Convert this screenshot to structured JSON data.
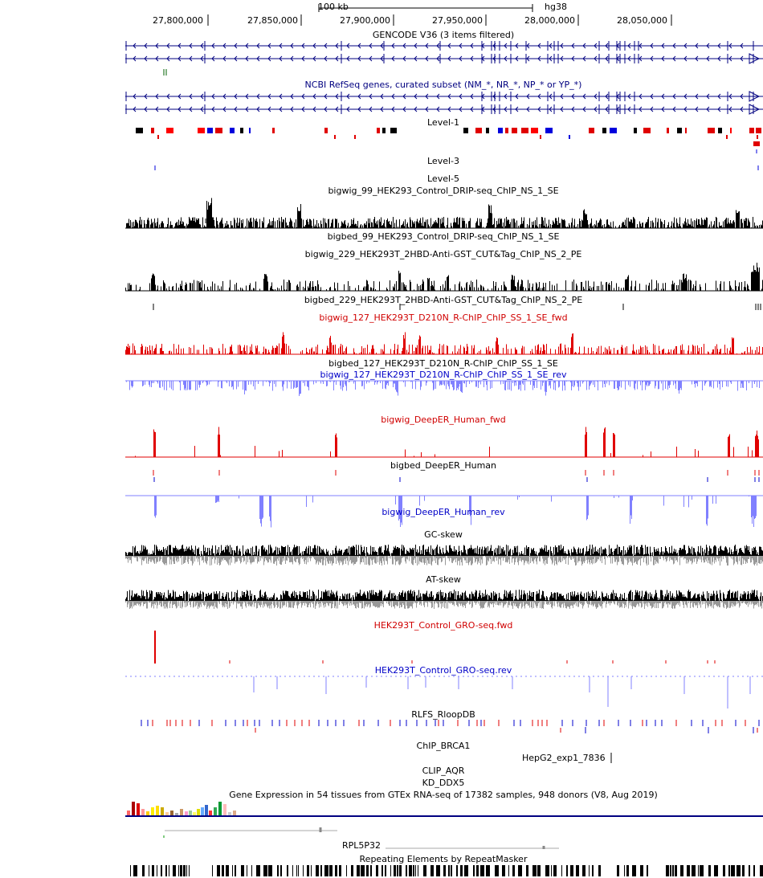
{
  "ruler": {
    "scale_label": "100 kb",
    "assembly": "hg38",
    "ticks": [
      "27,800,000",
      "27,850,000",
      "27,900,000",
      "27,950,000",
      "28,000,000",
      "28,050,000"
    ]
  },
  "tracks": {
    "gencode": "GENCODE V36 (3 items filtered)",
    "refseq": "NCBI RefSeq genes, curated subset (NM_*, NR_*, NP_* or YP_*)",
    "level1": "Level-1",
    "level3": "Level-3",
    "level5": "Level-5",
    "bigwig_99": "bigwig_99_HEK293_Control_DRIP-seq_ChIP_NS_1_SE",
    "bigbed_99": "bigbed_99_HEK293_Control_DRIP-seq_ChIP_NS_1_SE",
    "bigwig_229": "bigwig_229_HEK293T_2HBD-Anti-GST_CUT&Tag_ChIP_NS_2_PE",
    "bigbed_229": "bigbed_229_HEK293T_2HBD-Anti-GST_CUT&Tag_ChIP_NS_2_PE",
    "bigwig_127_fwd": "bigwig_127_HEK293T_D210N_R-ChIP_ChIP_SS_1_SE_fwd",
    "bigbed_127": "bigbed_127_HEK293T_D210N_R-ChIP_ChIP_SS_1_SE",
    "bigwig_127_rev": "bigwig_127_HEK293T_D210N_R-ChIP_ChIP_SS_1_SE_rev",
    "deeper_fwd": "bigwig_DeepER_Human_fwd",
    "deeper_bed": "bigbed_DeepER_Human",
    "deeper_rev": "bigwig_DeepER_Human_rev",
    "gc_skew": "GC-skew",
    "at_skew": "AT-skew",
    "gro_fwd": "HEK293T_Control_GRO-seq.fwd",
    "gro_rev": "HEK293T_Control_GRO-seq.rev",
    "rlfs": "RLFS_RloopDB",
    "chip_brca1": "ChIP_BRCA1",
    "hepg2": "HepG2_exp1_7836",
    "clip_aqr": "CLIP_AQR",
    "kd_ddx5": "KD_DDX5",
    "gtex": "Gene Expression in 54 tissues from GTEx RNA-seq of 17382 samples, 948 donors (V8, Aug 2019)",
    "rpl5p32": "RPL5P32",
    "repeatmasker": "Repeating Elements by RepeatMasker"
  },
  "colors": {
    "navy": "#000080",
    "fwd_red": "#e00000",
    "rev_blue": "#8080ff",
    "bed_blue": "#0000cc",
    "skew_neg": "#999999"
  }
}
